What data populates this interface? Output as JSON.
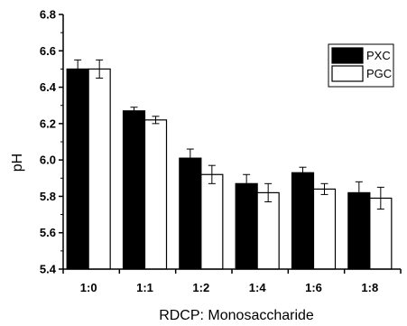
{
  "chart_data": {
    "type": "bar",
    "xlabel": "RDCP: Monosaccharide",
    "ylabel": "pH",
    "ylim": [
      5.4,
      6.8
    ],
    "yticks": [
      "5.4",
      "5.6",
      "5.8",
      "6.0",
      "6.2",
      "6.4",
      "6.6",
      "6.8"
    ],
    "categories": [
      "1:0",
      "1:1",
      "1:2",
      "1:4",
      "1:6",
      "1:8"
    ],
    "series": [
      {
        "name": "PXC",
        "color": "#000000",
        "values": [
          6.5,
          6.27,
          6.01,
          5.87,
          5.93,
          5.82
        ],
        "errors": [
          0.05,
          0.02,
          0.05,
          0.05,
          0.03,
          0.06
        ]
      },
      {
        "name": "PGC",
        "color": "#ffffff",
        "values": [
          6.5,
          6.22,
          5.92,
          5.82,
          5.84,
          5.79
        ],
        "errors": [
          0.05,
          0.02,
          0.05,
          0.05,
          0.03,
          0.06
        ]
      }
    ],
    "legend_position": "top-right",
    "grid": false
  }
}
